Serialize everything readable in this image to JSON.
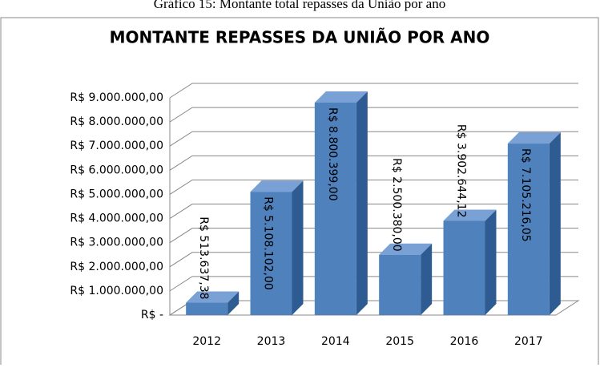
{
  "caption": "Gráfico 15: Montante total repasses da União por ano",
  "chart_data": {
    "type": "bar3d",
    "title": "MONTANTE REPASSES DA UNIÃO POR ANO",
    "categories": [
      "2012",
      "2013",
      "2014",
      "2015",
      "2016",
      "2017"
    ],
    "values": [
      513637.38,
      5108102.0,
      8800399.0,
      2500380.0,
      3902644.12,
      7105216.05
    ],
    "value_labels": [
      "R$ 513.637,38",
      "R$ 5.108.102,00",
      "R$ 8.800.399,00",
      "R$ 2.500.380,00",
      "R$ 3.902.644,12",
      "R$ 7.105.216,05"
    ],
    "color": "#4f81bd",
    "ylim": [
      0,
      9000000
    ],
    "yticks": [
      {
        "value": 0,
        "label": "R$ -"
      },
      {
        "value": 1000000,
        "label": "R$ 1.000.000,00"
      },
      {
        "value": 2000000,
        "label": "R$ 2.000.000,00"
      },
      {
        "value": 3000000,
        "label": "R$ 3.000.000,00"
      },
      {
        "value": 4000000,
        "label": "R$ 4.000.000,00"
      },
      {
        "value": 5000000,
        "label": "R$ 5.000.000,00"
      },
      {
        "value": 6000000,
        "label": "R$ 6.000.000,00"
      },
      {
        "value": 7000000,
        "label": "R$ 7.000.000,00"
      },
      {
        "value": 8000000,
        "label": "R$ 8.000.000,00"
      },
      {
        "value": 9000000,
        "label": "R$ 9.000.000,00"
      }
    ],
    "grid": true
  }
}
